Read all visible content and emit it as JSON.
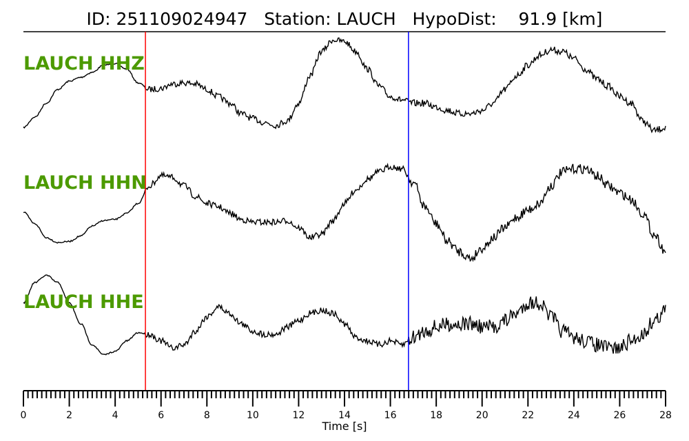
{
  "chart_data": {
    "type": "line",
    "title": "ID: 251109024947   Station: LAUCH   HypoDist:    91.9 [km]",
    "xlabel": "Time [s]",
    "ylabel": "",
    "xlim": [
      0,
      28
    ],
    "x_major_ticks": [
      "0",
      "2",
      "4",
      "6",
      "8",
      "10",
      "12",
      "14",
      "16",
      "18",
      "20",
      "22",
      "24",
      "26",
      "28"
    ],
    "x_minor_tick_step": 0.2,
    "grid": false,
    "sample_step_s": 0.5,
    "markers": [
      {
        "time": 5.32,
        "color": "#ff0000"
      },
      {
        "time": 16.79,
        "color": "#0000ff"
      }
    ],
    "label_color": "#4c9a00",
    "trace_color": "#000000",
    "series": [
      {
        "name": "LAUCH HHZ",
        "values": [
          -0.75,
          -0.56,
          -0.31,
          -0.06,
          0.09,
          0.16,
          0.25,
          0.38,
          0.41,
          0.31,
          0.06,
          -0.06,
          -0.04,
          0.04,
          0.06,
          0.04,
          -0.06,
          -0.19,
          -0.31,
          -0.5,
          -0.59,
          -0.66,
          -0.71,
          -0.63,
          -0.31,
          0.19,
          0.63,
          0.84,
          0.81,
          0.63,
          0.31,
          0,
          -0.19,
          -0.25,
          -0.31,
          -0.31,
          -0.38,
          -0.44,
          -0.5,
          -0.5,
          -0.44,
          -0.31,
          -0.06,
          0.19,
          0.38,
          0.56,
          0.66,
          0.63,
          0.5,
          0.31,
          0.13,
          0,
          -0.19,
          -0.31,
          -0.63,
          -0.81,
          -0.75
        ]
      },
      {
        "name": "LAUCH HHN",
        "values": [
          0.05,
          -0.16,
          -0.41,
          -0.5,
          -0.48,
          -0.38,
          -0.2,
          -0.1,
          -0.08,
          0.03,
          0.21,
          0.53,
          0.71,
          0.68,
          0.53,
          0.34,
          0.21,
          0.15,
          0.03,
          -0.08,
          -0.13,
          -0.13,
          -0.13,
          -0.1,
          -0.23,
          -0.41,
          -0.35,
          -0.1,
          0.21,
          0.46,
          0.65,
          0.78,
          0.88,
          0.84,
          0.59,
          0.15,
          -0.16,
          -0.48,
          -0.66,
          -0.79,
          -0.6,
          -0.41,
          -0.23,
          -0.04,
          0.09,
          0.21,
          0.53,
          0.78,
          0.84,
          0.84,
          0.71,
          0.53,
          0.4,
          0.28,
          0.03,
          -0.35,
          -0.66
        ]
      },
      {
        "name": "LAUCH HHE",
        "values": [
          0.43,
          0.8,
          0.93,
          0.8,
          0.43,
          0.05,
          -0.33,
          -0.51,
          -0.45,
          -0.26,
          -0.11,
          -0.14,
          -0.26,
          -0.39,
          -0.33,
          -0.08,
          0.18,
          0.36,
          0.24,
          0.05,
          -0.08,
          -0.14,
          -0.14,
          -0.01,
          0.11,
          0.24,
          0.3,
          0.24,
          0.05,
          -0.2,
          -0.26,
          -0.33,
          -0.26,
          -0.33,
          -0.2,
          -0.08,
          -0.01,
          0.05,
          0.05,
          0.05,
          -0.01,
          -0.01,
          0.11,
          0.24,
          0.43,
          0.43,
          0.18,
          -0.08,
          -0.2,
          -0.26,
          -0.33,
          -0.39,
          -0.39,
          -0.26,
          -0.14,
          0.11,
          0.3
        ]
      }
    ]
  }
}
